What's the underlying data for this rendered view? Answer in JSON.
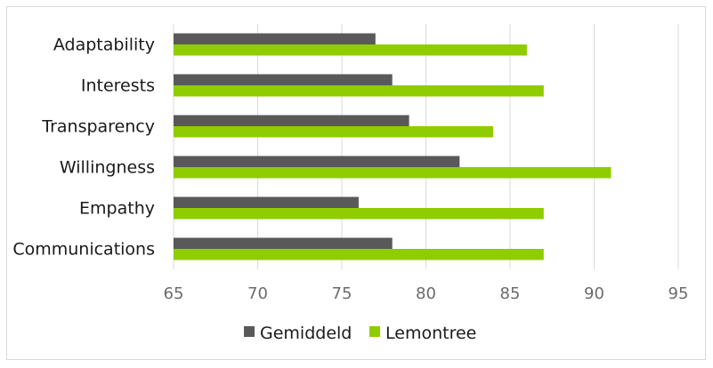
{
  "chart_data": {
    "type": "bar",
    "orientation": "horizontal",
    "categories": [
      "Adaptability",
      "Interests",
      "Transparency",
      "Willingness",
      "Empathy",
      "Communications"
    ],
    "series": [
      {
        "name": "Gemiddeld",
        "color": "#595959",
        "values": [
          77,
          78,
          79,
          82,
          76,
          78
        ]
      },
      {
        "name": "Lemontree",
        "color": "#8fcc00",
        "values": [
          86,
          87,
          84,
          91,
          87,
          87
        ]
      }
    ],
    "xlim": [
      65,
      95
    ],
    "xticks": [
      65,
      70,
      75,
      80,
      85,
      90,
      95
    ],
    "grid": "vertical",
    "legend_position": "bottom"
  }
}
